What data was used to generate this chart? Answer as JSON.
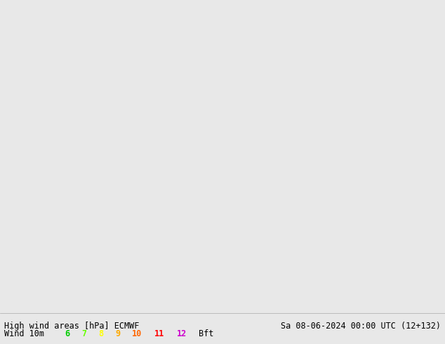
{
  "title_left": "High wind areas [hPa] ECMWF",
  "title_right": "Sa 08-06-2024 00:00 UTC (12+132)",
  "subtitle_left": "Wind 10m",
  "legend_labels": [
    "6",
    "7",
    "8",
    "9",
    "10",
    "11",
    "12",
    "Bft"
  ],
  "legend_colors": [
    "#00cc00",
    "#66ff00",
    "#ffff00",
    "#ffaa00",
    "#ff6600",
    "#ff0000",
    "#cc00cc"
  ],
  "bg_color": "#90ee90",
  "map_bg": "#90d090",
  "text_color": "#000000",
  "fig_width": 6.34,
  "fig_height": 4.9,
  "dpi": 100,
  "border_color": "#cccccc",
  "bottom_bar_color": "#e8e8e8"
}
